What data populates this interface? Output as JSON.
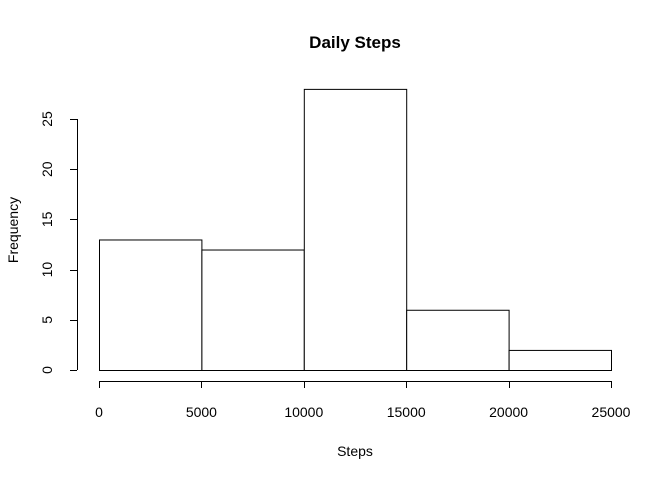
{
  "chart_data": {
    "type": "bar",
    "title": "Daily Steps",
    "xlabel": "Steps",
    "ylabel": "Frequency",
    "bins": [
      {
        "start": 0,
        "end": 5000,
        "count": 13
      },
      {
        "start": 5000,
        "end": 10000,
        "count": 12
      },
      {
        "start": 10000,
        "end": 15000,
        "count": 28
      },
      {
        "start": 15000,
        "end": 20000,
        "count": 6
      },
      {
        "start": 20000,
        "end": 25000,
        "count": 2
      }
    ],
    "xlim": [
      0,
      25000
    ],
    "ylim": [
      0,
      28
    ],
    "xticks": [
      "0",
      "5000",
      "10000",
      "15000",
      "20000",
      "25000"
    ],
    "yticks": [
      "0",
      "5",
      "10",
      "15",
      "20",
      "25"
    ],
    "bar_fill": "#ffffff",
    "bar_stroke": "#000000",
    "grid": false
  }
}
